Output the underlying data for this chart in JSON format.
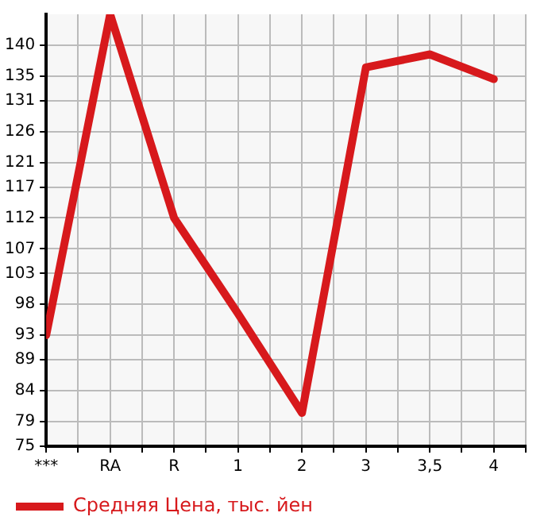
{
  "chart_data": {
    "type": "line",
    "categories": [
      "***",
      "RA",
      "R",
      "1",
      "2",
      "3",
      "3,5",
      "4"
    ],
    "series": [
      {
        "name": "Средняя Цена, тыс. йен",
        "color": "#d7191c",
        "values": [
          93,
          145,
          112,
          96.5,
          80.4,
          136.4,
          138.5,
          134.5
        ]
      }
    ],
    "ylim": [
      75,
      145
    ],
    "yticks": [
      75,
      79,
      84,
      89,
      93,
      98,
      103,
      107,
      112,
      117,
      121,
      126,
      131,
      135,
      140
    ],
    "grid": true,
    "legend": "bottom",
    "marker": "none",
    "line_style": "solid"
  }
}
